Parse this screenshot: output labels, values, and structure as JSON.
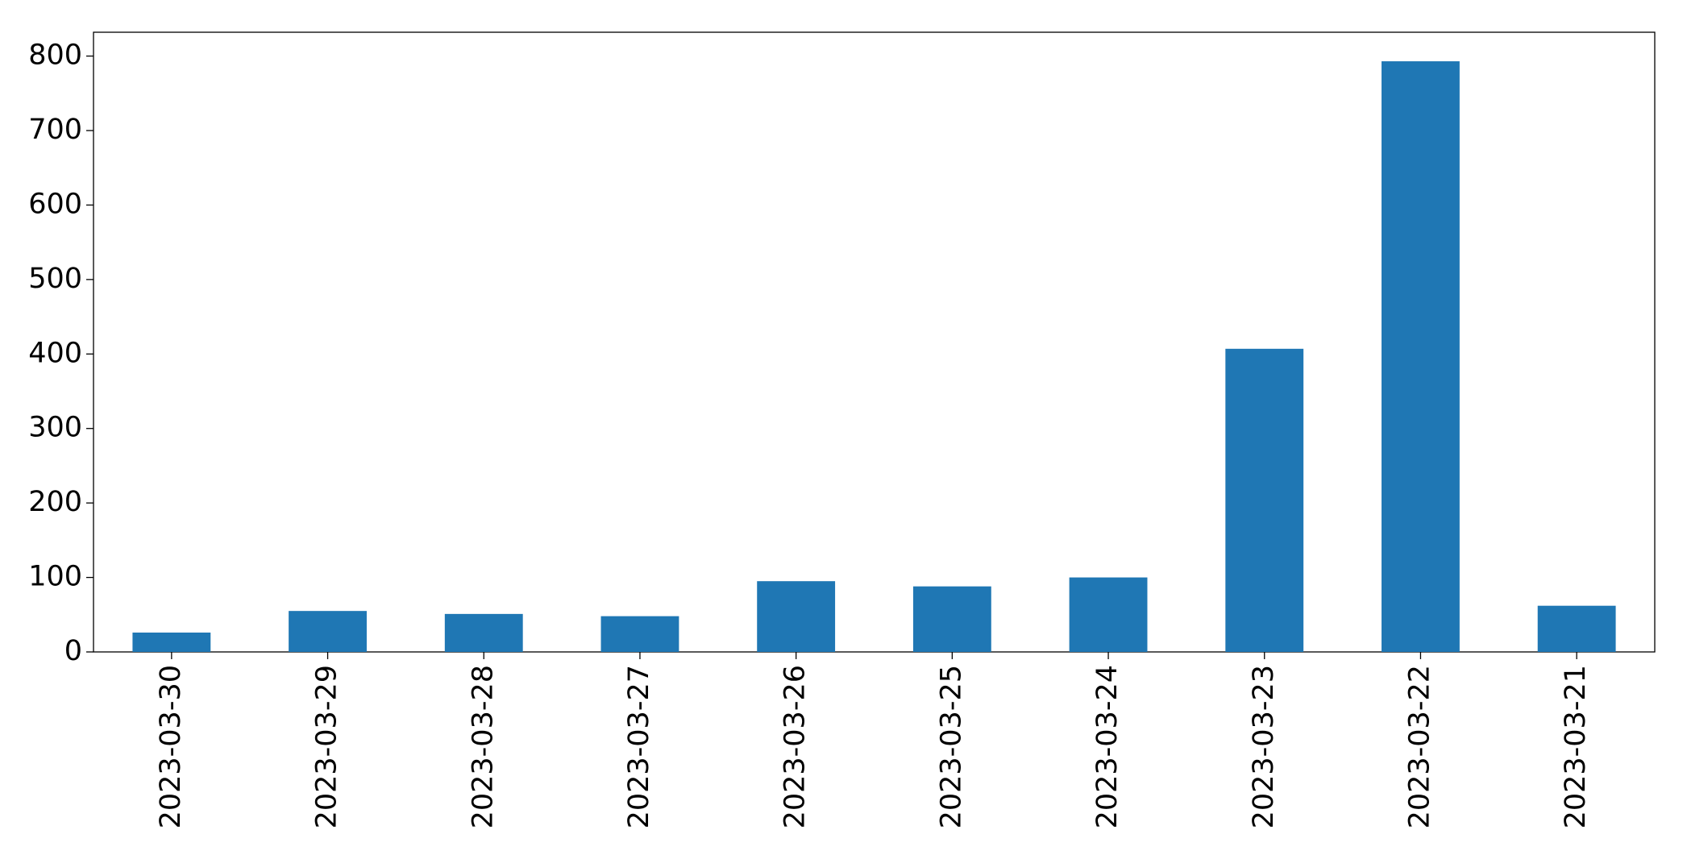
{
  "chart_data": {
    "type": "bar",
    "categories": [
      "2023-03-30",
      "2023-03-29",
      "2023-03-28",
      "2023-03-27",
      "2023-03-26",
      "2023-03-25",
      "2023-03-24",
      "2023-03-23",
      "2023-03-22",
      "2023-03-21"
    ],
    "values": [
      26,
      55,
      51,
      48,
      95,
      88,
      100,
      407,
      793,
      62
    ],
    "color": "#1f77b4",
    "ylim": [
      0,
      832
    ],
    "yticks": [
      0,
      100,
      200,
      300,
      400,
      500,
      600,
      700,
      800
    ],
    "grid": false
  }
}
